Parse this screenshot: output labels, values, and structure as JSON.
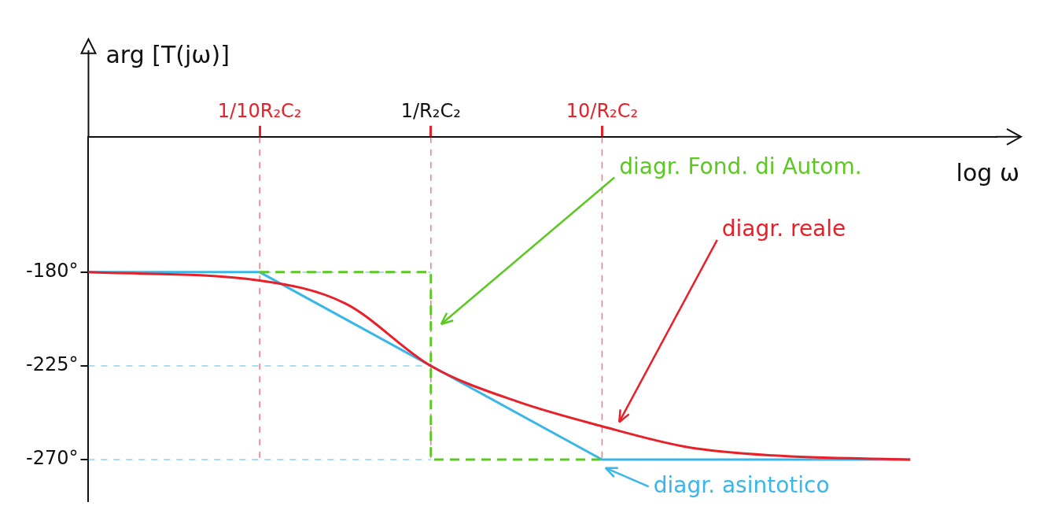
{
  "chart_data": {
    "type": "line",
    "y_label": "arg [T(jω)]",
    "x_label": "log ω",
    "xlim": [
      -2,
      3.3
    ],
    "xticks": [
      {
        "value": -1,
        "label": "1/10R₂C₂"
      },
      {
        "value": 0,
        "label": "1/R₂C₂"
      },
      {
        "value": 1,
        "label": "10/R₂C₂"
      }
    ],
    "ylim": [
      -290,
      -115
    ],
    "yticks": [
      {
        "value": -180,
        "label": "-180°"
      },
      {
        "value": -225,
        "label": "-225°"
      },
      {
        "value": -270,
        "label": "-270°"
      }
    ],
    "grid": false,
    "series": [
      {
        "name": "diagr. asintotico",
        "color": "#3bb6e8",
        "line_style": "solid",
        "x": [
          -2,
          -1,
          1,
          2.8
        ],
        "values": [
          -180,
          -180,
          -270,
          -270
        ]
      },
      {
        "name": "diagr. reale",
        "color": "#e8202a",
        "line_style": "solid",
        "x": [
          -2,
          -1,
          -0.5,
          0,
          0.5,
          1,
          1.5,
          2,
          2.8
        ],
        "values": [
          -180,
          -184,
          -195,
          -225,
          -242,
          -254,
          -264,
          -268,
          -270
        ]
      },
      {
        "name": "diagr. Fond. di Autom.",
        "color": "#5cc822",
        "line_style": "dashed",
        "x": [
          -1,
          0,
          0,
          1
        ],
        "values": [
          -180,
          -180,
          -270,
          -270
        ]
      }
    ]
  }
}
